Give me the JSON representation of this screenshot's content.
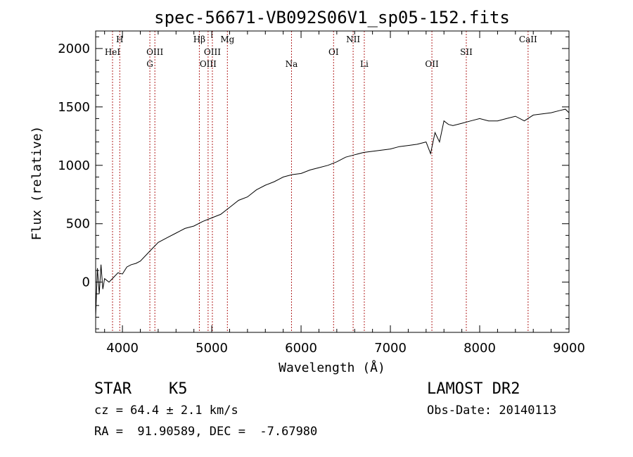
{
  "chart_data": {
    "type": "line",
    "title": "spec-56671-VB092S06V1_sp05-152.fits",
    "xlabel": "Wavelength (Å)",
    "ylabel": "Flux (relative)",
    "xlim": [
      3700,
      9000
    ],
    "ylim": [
      -430,
      2150
    ],
    "xticks": [
      4000,
      5000,
      6000,
      7000,
      8000,
      9000
    ],
    "yticks": [
      0,
      500,
      1000,
      1500,
      2000
    ],
    "grid": false,
    "line_color": "#000000",
    "marker_color": "#b22222",
    "series": [
      {
        "x": [
          3700,
          3720,
          3740,
          3760,
          3780,
          3800,
          3850,
          3900,
          3950,
          4000,
          4050,
          4100,
          4150,
          4200,
          4300,
          4400,
          4500,
          4600,
          4700,
          4800,
          4900,
          5000,
          5100,
          5200,
          5300,
          5400,
          5500,
          5600,
          5700,
          5800,
          5900,
          6000,
          6100,
          6200,
          6300,
          6400,
          6500,
          6600,
          6700,
          6800,
          6900,
          7000,
          7100,
          7200,
          7300,
          7400,
          7450,
          7500,
          7550,
          7600,
          7650,
          7700,
          7800,
          7900,
          8000,
          8100,
          8200,
          8300,
          8400,
          8500,
          8600,
          8700,
          8800,
          8900,
          8960,
          9000
        ],
        "y": [
          -300,
          120,
          -100,
          150,
          -60,
          30,
          0,
          40,
          80,
          70,
          130,
          150,
          160,
          180,
          260,
          340,
          380,
          420,
          460,
          480,
          520,
          550,
          580,
          640,
          700,
          730,
          790,
          830,
          860,
          900,
          920,
          930,
          960,
          980,
          1000,
          1030,
          1070,
          1090,
          1110,
          1120,
          1130,
          1140,
          1160,
          1170,
          1180,
          1200,
          1100,
          1280,
          1200,
          1380,
          1350,
          1340,
          1360,
          1380,
          1400,
          1380,
          1380,
          1400,
          1420,
          1380,
          1430,
          1440,
          1450,
          1470,
          1480,
          1450
        ]
      }
    ],
    "line_markers": [
      {
        "label": "H",
        "x": 3970,
        "row": 0
      },
      {
        "label": "HeI",
        "x": 3889,
        "row": 1
      },
      {
        "label": "OIII",
        "x": 4363,
        "row": 1
      },
      {
        "label": "G",
        "x": 4307,
        "row": 2
      },
      {
        "label": "Hβ",
        "x": 4861,
        "row": 0
      },
      {
        "label": "OIII",
        "x": 5007,
        "row": 1
      },
      {
        "label": "OIII",
        "x": 4959,
        "row": 2
      },
      {
        "label": "Mg",
        "x": 5175,
        "row": 0
      },
      {
        "label": "Na",
        "x": 5893,
        "row": 2
      },
      {
        "label": "OI",
        "x": 6364,
        "row": 1
      },
      {
        "label": "NII",
        "x": 6583,
        "row": 0
      },
      {
        "label": "Li",
        "x": 6708,
        "row": 2
      },
      {
        "label": "OII",
        "x": 7465,
        "row": 2
      },
      {
        "label": "SII",
        "x": 7850,
        "row": 1
      },
      {
        "label": "CaII",
        "x": 8542,
        "row": 0
      }
    ]
  },
  "info": {
    "object_type": "STAR",
    "subclass": "K5",
    "survey": "LAMOST DR2",
    "cz": "cz = 64.4 ± 2.1 km/s",
    "obs_date": "Obs-Date: 20140113",
    "coords": "RA =  91.90589, DEC =  -7.67980"
  }
}
